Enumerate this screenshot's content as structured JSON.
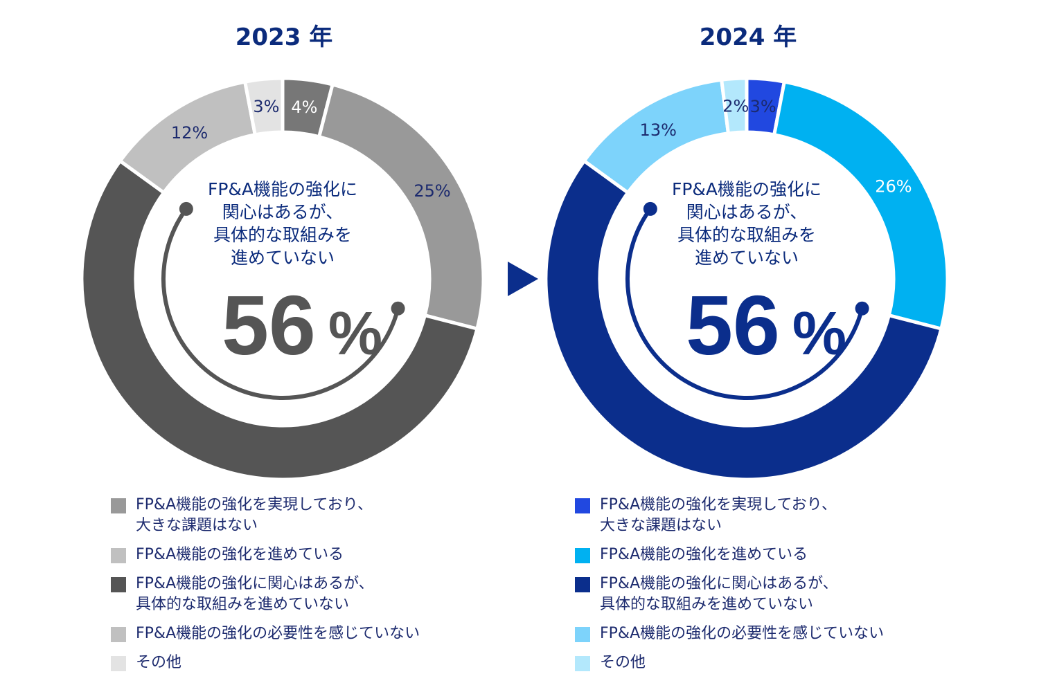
{
  "chart_data": [
    {
      "type": "pie",
      "title": "2023 年",
      "title_color": "#0b2b7c",
      "slices": [
        {
          "label": "FP&A機能の強化を実現しており、\n大きな課題はない",
          "value": 4,
          "display": "4%",
          "color": "#777777",
          "label_color": "#ffffff"
        },
        {
          "label": "FP&A機能の強化を進めている",
          "value": 25,
          "display": "25%",
          "color": "#999999",
          "label_color": "#1c2a6e"
        },
        {
          "label": "FP&A機能の強化に関心はあるが、\n具体的な取組みを進めていない",
          "value": 56,
          "display": "",
          "color": "#555555",
          "label_color": "#1c2a6e"
        },
        {
          "label": "FP&A機能の強化の必要性を感じていない",
          "value": 12,
          "display": "12%",
          "color": "#c0c0c0",
          "label_color": "#1c2a6e"
        },
        {
          "label": "その他",
          "value": 3,
          "display": "3%",
          "color": "#e3e3e3",
          "label_color": "#1c2a6e"
        }
      ],
      "center_text": "FP&A機能の強化に\n関心はあるが、\n具体的な取組みを\n進めていない",
      "center_value": "56",
      "center_unit": "%",
      "accent_color": "#555555",
      "legend_order": [
        0,
        1,
        2,
        3,
        4
      ],
      "legend_colors": [
        "#999999",
        "#c0c0c0",
        "#555555",
        "#c0c0c0",
        "#e3e3e3"
      ]
    },
    {
      "type": "pie",
      "title": "2024 年",
      "title_color": "#0b2b7c",
      "slices": [
        {
          "label": "FP&A機能の強化を実現しており、\n大きな課題はない",
          "value": 3,
          "display": "3%",
          "color": "#2148e0",
          "label_color": "#1c2a6e"
        },
        {
          "label": "FP&A機能の強化を進めている",
          "value": 26,
          "display": "26%",
          "color": "#00b1f1",
          "label_color": "#ffffff"
        },
        {
          "label": "FP&A機能の強化に関心はあるが、\n具体的な取組みを進めていない",
          "value": 56,
          "display": "",
          "color": "#0b2e8c",
          "label_color": "#1c2a6e"
        },
        {
          "label": "FP&A機能の強化の必要性を感じていない",
          "value": 13,
          "display": "13%",
          "color": "#7dd3fb",
          "label_color": "#1c2a6e"
        },
        {
          "label": "その他",
          "value": 2,
          "display": "2%",
          "color": "#b3e8fc",
          "label_color": "#1c2a6e"
        }
      ],
      "center_text": "FP&A機能の強化に\n関心はあるが、\n具体的な取組みを\n進めていない",
      "center_value": "56",
      "center_unit": "%",
      "accent_color": "#0b2e8c",
      "legend_order": [
        0,
        1,
        2,
        3,
        4
      ],
      "legend_colors": [
        "#2148e0",
        "#00b1f1",
        "#0b2e8c",
        "#7dd3fb",
        "#b3e8fc"
      ]
    }
  ],
  "arrow": {
    "color": "#0b2e8c",
    "icon": "play-arrow-right"
  },
  "colors": {
    "label_text": "#1c2a6e"
  }
}
